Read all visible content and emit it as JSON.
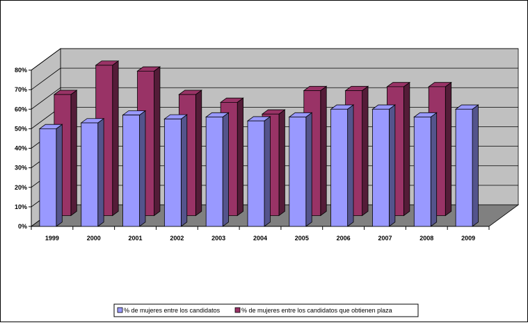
{
  "chart_data": {
    "type": "bar",
    "title": "",
    "xlabel": "",
    "ylabel": "",
    "categories": [
      "1999",
      "2000",
      "2001",
      "2002",
      "2003",
      "2004",
      "2005",
      "2006",
      "2007",
      "2008",
      "2009"
    ],
    "series": [
      {
        "name": "% de mujeres entre los candidatos",
        "values": [
          50,
          53,
          57,
          55,
          56,
          54,
          56,
          60,
          60,
          56,
          60
        ]
      },
      {
        "name": "% de mujeres entre los candidatos que obtienen plaza",
        "values": [
          62,
          77,
          74,
          62,
          58,
          52,
          64,
          64,
          66,
          66,
          null
        ]
      }
    ],
    "ylim": [
      0,
      80
    ],
    "yticks": [
      "0%",
      "10%",
      "20%",
      "30%",
      "40%",
      "50%",
      "60%",
      "70%",
      "80%"
    ],
    "grid": true,
    "legend_position": "bottom",
    "colors": {
      "series1": "#9999ff",
      "series2": "#993366",
      "wall": "#c0c0c0",
      "floor": "#808080"
    }
  }
}
